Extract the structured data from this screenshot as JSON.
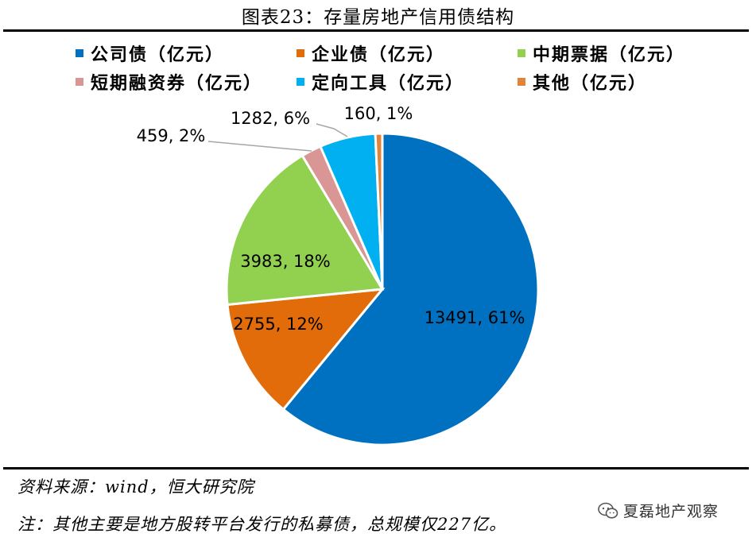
{
  "title": "图表23：存量房地产信用债结构",
  "chart_data": {
    "type": "pie",
    "title": "图表23：存量房地产信用债结构",
    "legend_position": "top",
    "series": [
      {
        "name": "公司债（亿元）",
        "value": 13491,
        "label": "13491, 61%",
        "color": "#0070C0"
      },
      {
        "name": "企业债（亿元）",
        "value": 2755,
        "label": "2755, 12%",
        "color": "#E36C0A"
      },
      {
        "name": "中期票据（亿元）",
        "value": 3983,
        "label": "3983, 18%",
        "color": "#92D050"
      },
      {
        "name": "短期融资券（亿元）",
        "value": 459,
        "label": "459, 2%",
        "color": "#D99694"
      },
      {
        "name": "定向工具（亿元）",
        "value": 1282,
        "label": "1282, 6%",
        "color": "#00B0F0"
      },
      {
        "name": "其他（亿元）",
        "value": 160,
        "label": "160, 1%",
        "color": "#E0843C"
      }
    ]
  },
  "footer": {
    "source": "资料来源：wind，恒大研究院",
    "note": "注：其他主要是地方股转平台发行的私募债，总规模仅227亿。"
  },
  "watermark": {
    "text": "夏磊地产观察",
    "icon": "wechat-icon"
  }
}
